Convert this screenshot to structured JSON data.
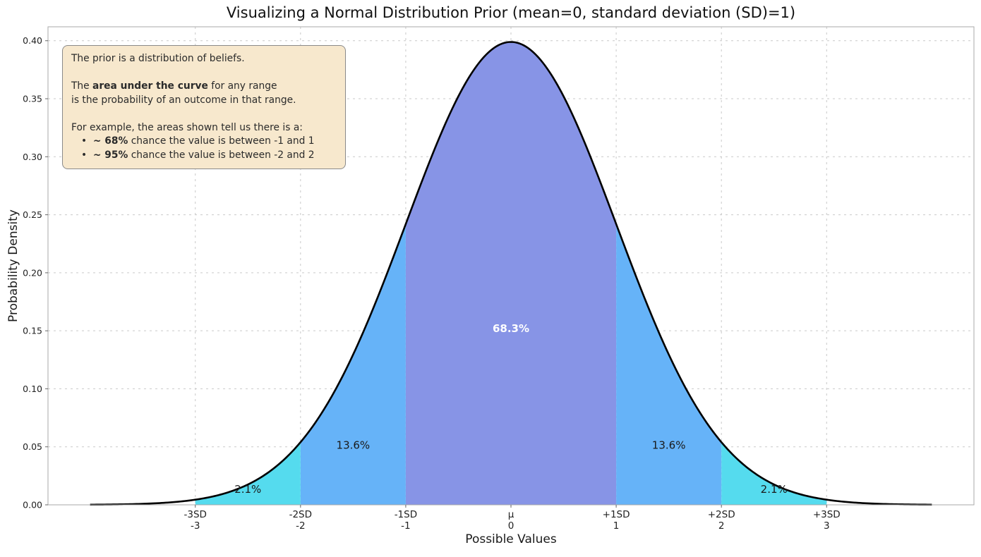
{
  "figure": {
    "background": "#ffffff"
  },
  "annotation": {
    "background": "#f7e8cd",
    "border": "#8a8a8a",
    "lines": [
      {
        "indent": false,
        "segments": [
          {
            "t": "The prior is a distribution of beliefs.",
            "b": false
          }
        ]
      },
      {
        "indent": false,
        "segments": []
      },
      {
        "indent": false,
        "segments": [
          {
            "t": "The ",
            "b": false
          },
          {
            "t": "area under the curve",
            "b": true
          },
          {
            "t": " for any range",
            "b": false
          }
        ]
      },
      {
        "indent": false,
        "segments": [
          {
            "t": "is the probability of an outcome in that range.",
            "b": false
          }
        ]
      },
      {
        "indent": false,
        "segments": []
      },
      {
        "indent": false,
        "segments": [
          {
            "t": "For example, the areas shown tell us there is a:",
            "b": false
          }
        ]
      },
      {
        "indent": true,
        "segments": [
          {
            "t": "•  ",
            "b": false
          },
          {
            "t": "~ 68%",
            "b": true
          },
          {
            "t": " chance the value is between -1 and 1",
            "b": false
          }
        ]
      },
      {
        "indent": true,
        "segments": [
          {
            "t": "•  ",
            "b": false
          },
          {
            "t": "~ 95%",
            "b": true
          },
          {
            "t": " chance the value is between -2 and 2",
            "b": false
          }
        ]
      }
    ]
  },
  "chart_data": {
    "type": "area",
    "title": "Visualizing a Normal Distribution Prior (mean=0, standard deviation (SD)=1)",
    "xlabel": "Possible Values",
    "ylabel": "Probability Density",
    "xlim": [
      -4.4,
      4.4
    ],
    "ylim": [
      0,
      0.412
    ],
    "grid": true,
    "grid_color": "#c9c9c9",
    "spine_color": "#a8a8a8",
    "curve_color": "#000000",
    "curve": {
      "distribution": "normal",
      "mean": 0,
      "sd": 1,
      "x_start": -4,
      "x_end": 4
    },
    "y_ticks": [
      {
        "value": 0.0,
        "label": "0.00"
      },
      {
        "value": 0.05,
        "label": "0.05"
      },
      {
        "value": 0.1,
        "label": "0.10"
      },
      {
        "value": 0.15,
        "label": "0.15"
      },
      {
        "value": 0.2,
        "label": "0.20"
      },
      {
        "value": 0.25,
        "label": "0.25"
      },
      {
        "value": 0.3,
        "label": "0.30"
      },
      {
        "value": 0.35,
        "label": "0.35"
      },
      {
        "value": 0.4,
        "label": "0.40"
      }
    ],
    "x_ticks": [
      {
        "value": -3,
        "label_top": "-3SD",
        "label_bottom": "-3"
      },
      {
        "value": -2,
        "label_top": "-2SD",
        "label_bottom": "-2"
      },
      {
        "value": -1,
        "label_top": "-1SD",
        "label_bottom": "-1"
      },
      {
        "value": 0,
        "label_top": "μ",
        "label_bottom": "0"
      },
      {
        "value": 1,
        "label_top": "+1SD",
        "label_bottom": "1"
      },
      {
        "value": 2,
        "label_top": "+2SD",
        "label_bottom": "2"
      },
      {
        "value": 3,
        "label_top": "+3SD",
        "label_bottom": "3"
      }
    ],
    "bands": [
      {
        "name": "center",
        "from": -1,
        "to": 1,
        "color": "#8794e6",
        "label": "68.3%",
        "label_x": 0,
        "label_y": 0.152,
        "label_color": "#ffffff",
        "label_bold": true
      },
      {
        "name": "left-mid",
        "from": -2,
        "to": -1,
        "color": "#66b3f8",
        "label": "13.6%",
        "label_x": -1.5,
        "label_y": 0.0515,
        "label_color": "#1a1a1a",
        "label_bold": false
      },
      {
        "name": "right-mid",
        "from": 1,
        "to": 2,
        "color": "#66b3f8",
        "label": "13.6%",
        "label_x": 1.5,
        "label_y": 0.0515,
        "label_color": "#1a1a1a",
        "label_bold": false
      },
      {
        "name": "left-outer",
        "from": -3,
        "to": -2,
        "color": "#55dbee",
        "label": "2.1%",
        "label_x": -2.5,
        "label_y": 0.0135,
        "label_color": "#1a1a1a",
        "label_bold": false
      },
      {
        "name": "right-outer",
        "from": 2,
        "to": 3,
        "color": "#55dbee",
        "label": "2.1%",
        "label_x": 2.5,
        "label_y": 0.0135,
        "label_color": "#1a1a1a",
        "label_bold": false
      }
    ]
  }
}
